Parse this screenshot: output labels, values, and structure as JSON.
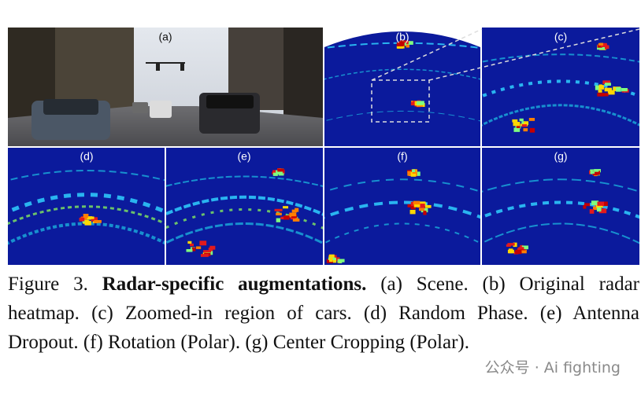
{
  "figure": {
    "panels": [
      "(a)",
      "(b)",
      "(c)",
      "(d)",
      "(e)",
      "(f)",
      "(g)"
    ]
  },
  "caption": {
    "label": "Figure 3.",
    "title": "Radar-specific augmentations.",
    "text": "(a) Scene. (b) Original radar heatmap. (c) Zoomed-in region of cars. (d) Random Phase. (e) Antenna Dropout. (f) Rotation (Polar). (g) Center Cropping (Polar)."
  },
  "watermark": "公众号 · Ai fighting"
}
